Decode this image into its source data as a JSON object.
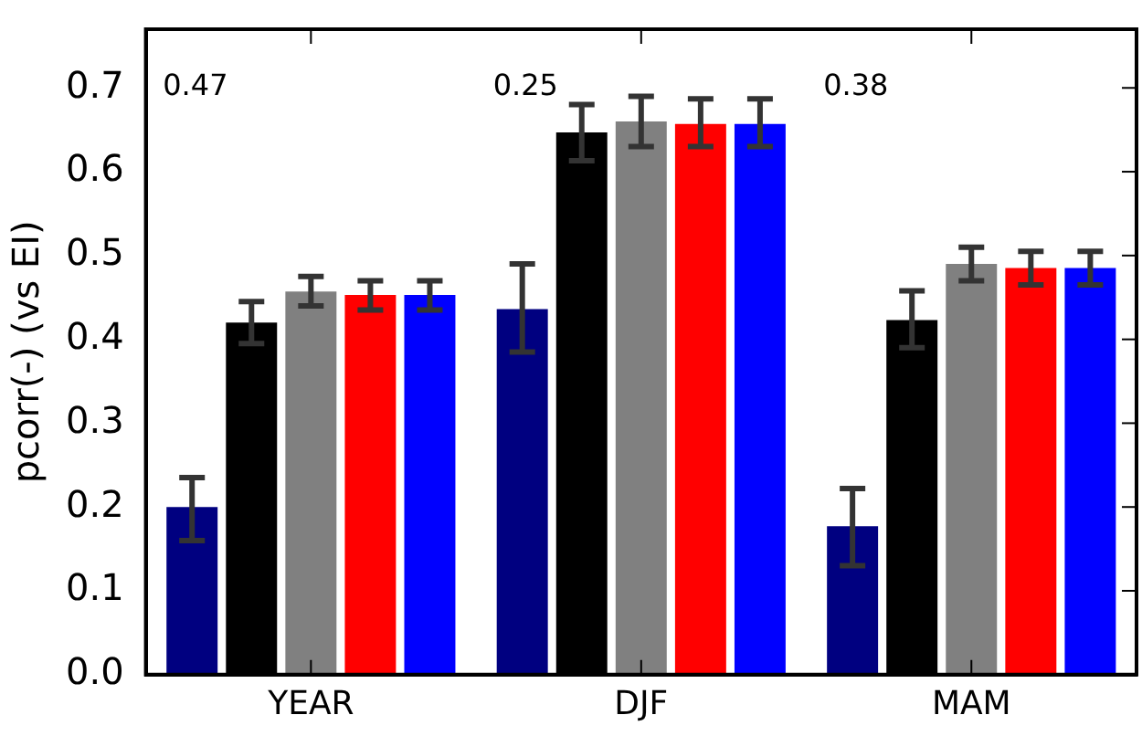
{
  "chart_data": {
    "type": "bar",
    "ylabel": "pcorr(-) (vs EI)",
    "categories": [
      "YEAR",
      "DJF",
      "MAM"
    ],
    "ylim": [
      0,
      0.77
    ],
    "yticks": [
      {
        "value": 0,
        "label": "0.0"
      },
      0.1,
      0.2,
      0.3,
      0.4,
      0.5,
      0.6,
      0.7
    ],
    "grid": false,
    "legend": false,
    "series": [
      {
        "color": "#000080",
        "values": [
          0.2,
          0.436,
          0.177
        ],
        "errors": [
          [
            0.16,
            0.235
          ],
          [
            0.385,
            0.49
          ],
          [
            0.13,
            0.222
          ]
        ]
      },
      {
        "color": "#000000",
        "values": [
          0.42,
          0.647,
          0.423
        ],
        "errors": [
          [
            0.395,
            0.445
          ],
          [
            0.613,
            0.68
          ],
          [
            0.39,
            0.458
          ]
        ]
      },
      {
        "color": "#808080",
        "values": [
          0.457,
          0.66,
          0.49
        ],
        "errors": [
          [
            0.44,
            0.475
          ],
          [
            0.63,
            0.69
          ],
          [
            0.47,
            0.51
          ]
        ]
      },
      {
        "color": "#ff0000",
        "values": [
          0.453,
          0.657,
          0.485
        ],
        "errors": [
          [
            0.435,
            0.47
          ],
          [
            0.63,
            0.687
          ],
          [
            0.465,
            0.505
          ]
        ]
      },
      {
        "color": "#0000ff",
        "values": [
          0.453,
          0.657,
          0.485
        ],
        "errors": [
          [
            0.435,
            0.47
          ],
          [
            0.63,
            0.687
          ],
          [
            0.465,
            0.505
          ]
        ]
      }
    ],
    "annotations": [
      "0.47",
      "0.25",
      "0.38"
    ]
  }
}
